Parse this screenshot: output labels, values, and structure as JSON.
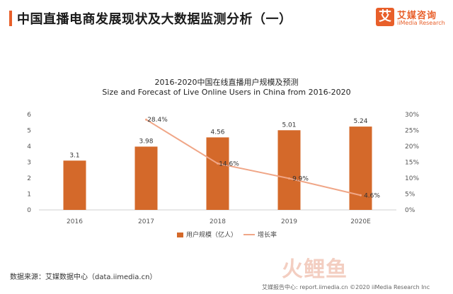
{
  "header": {
    "title": "中国直播电商发展现状及大数据监测分析（一）",
    "brand_icon": "艾",
    "brand_name": "艾媒咨询",
    "brand_sub": "iiMedia Research"
  },
  "chart_title_cn": "2016-2020中国在线直播用户规模及预测",
  "chart_title_en": "Size and Forecast of Live Online Users in China from 2016-2020",
  "source": "数据来源：艾媒数据中心（data.iimedia.cn）",
  "watermark": "火鲤鱼",
  "footer_note": "艾媒报告中心: report.iimedia.cn ©2020 iiMedia Research Inc",
  "colors": {
    "bar": "#d4692a",
    "line": "#f0a687",
    "accent": "#e85f2a"
  },
  "chart_data": {
    "type": "bar",
    "categories": [
      "2016",
      "2017",
      "2018",
      "2019",
      "2020E"
    ],
    "series": [
      {
        "name": "用户规模（亿人）",
        "type": "bar",
        "axis": "left",
        "values": [
          3.1,
          3.98,
          4.56,
          5.01,
          5.24
        ],
        "labels": [
          "3.1",
          "3.98",
          "4.56",
          "5.01",
          "5.24"
        ]
      },
      {
        "name": "增长率",
        "type": "line",
        "axis": "right",
        "values": [
          null,
          28.4,
          14.6,
          9.9,
          4.6
        ],
        "labels": [
          "",
          "28.4%",
          "14.6%",
          "9.9%",
          "4.6%"
        ]
      }
    ],
    "ylim": [
      0,
      6
    ],
    "y_ticks": [
      "0",
      "1",
      "2",
      "3",
      "4",
      "5",
      "6"
    ],
    "y2lim": [
      0,
      30
    ],
    "y2_ticks": [
      "0%",
      "5%",
      "10%",
      "15%",
      "20%",
      "25%",
      "30%"
    ],
    "grid": false,
    "legend_position": "bottom"
  }
}
